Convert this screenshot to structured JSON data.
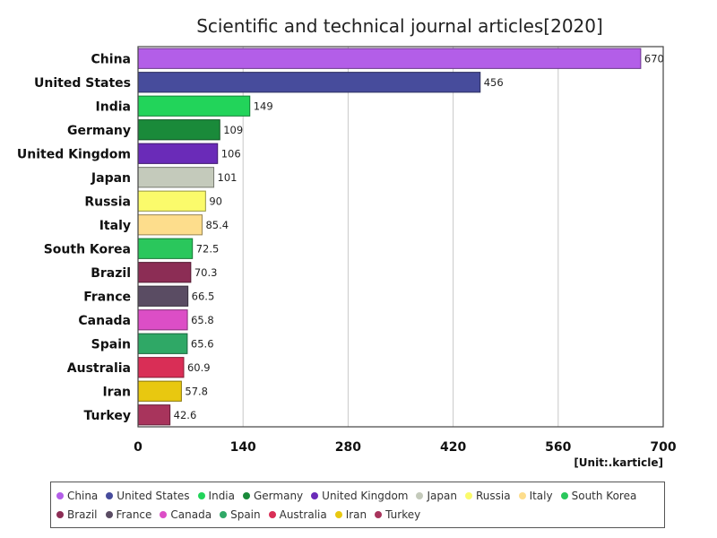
{
  "chart_data": {
    "type": "bar",
    "orientation": "horizontal",
    "title": "Scientific and technical journal articles[2020]",
    "unit": "[Unit:.karticle]",
    "xlim": [
      0,
      700
    ],
    "x_ticks": [
      "0",
      "140",
      "280",
      "420",
      "560",
      "700"
    ],
    "grid": true,
    "legend_position": "bottom",
    "categories": [
      "China",
      "United States",
      "India",
      "Germany",
      "United Kingdom",
      "Japan",
      "Russia",
      "Italy",
      "South Korea",
      "Brazil",
      "France",
      "Canada",
      "Spain",
      "Australia",
      "Iran",
      "Turkey"
    ],
    "values": [
      670,
      456,
      149,
      109,
      106,
      101,
      90,
      85.4,
      72.5,
      70.3,
      66.5,
      65.8,
      65.6,
      60.9,
      57.8,
      42.6
    ],
    "value_labels": [
      "670",
      "456",
      "149",
      "109",
      "106",
      "101",
      "90",
      "85.4",
      "72.5",
      "70.3",
      "66.5",
      "65.8",
      "65.6",
      "60.9",
      "57.8",
      "42.6"
    ],
    "colors": [
      "#b35ee8",
      "#474c9c",
      "#22d45a",
      "#1a8a3a",
      "#6a2bb8",
      "#c4cabb",
      "#fbfb6b",
      "#fddd8c",
      "#2ac75c",
      "#8c2d55",
      "#5a4c63",
      "#dc4ec6",
      "#2fa866",
      "#d92e56",
      "#e8c810",
      "#a8345c"
    ]
  }
}
